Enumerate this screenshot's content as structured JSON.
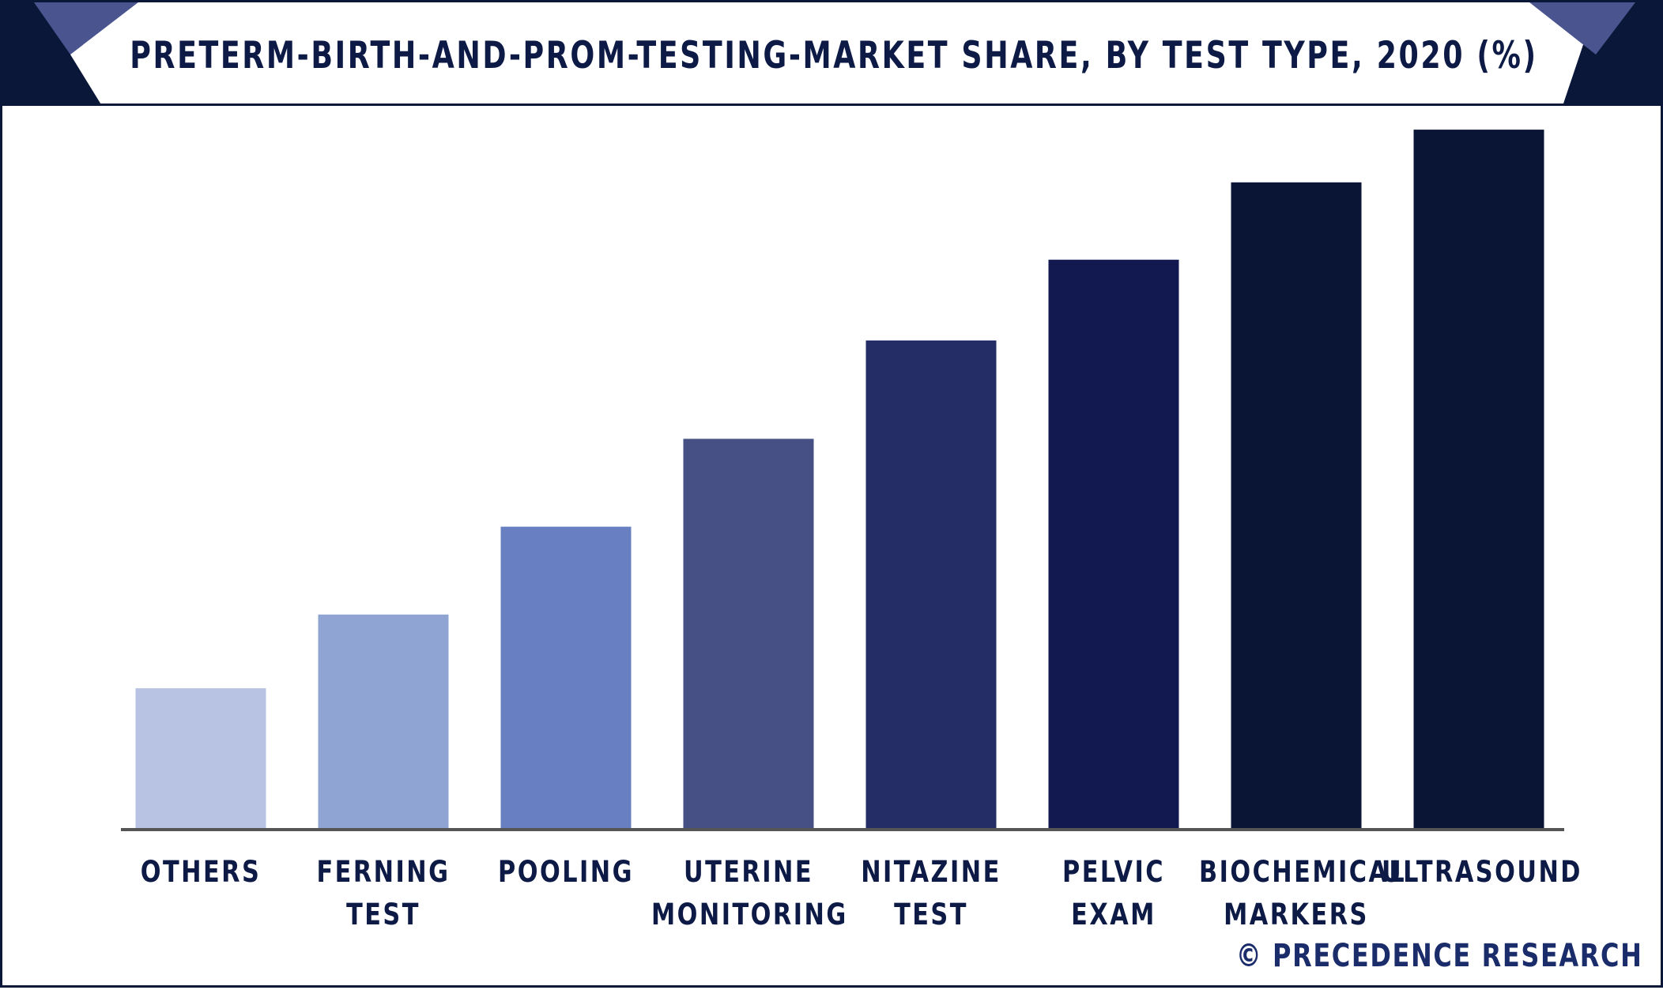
{
  "colors": {
    "frame": "#0b1739",
    "header_dark": "#0b1739",
    "header_accent": "#4a5590",
    "title_text": "#0c1a45",
    "axis": "#555555",
    "credit_text": "#1b2c6b"
  },
  "credit": "© PRECEDENCE RESEARCH",
  "chart_data": {
    "type": "bar",
    "title": "PRETERM-BIRTH-AND-PROM-TESTING-MARKET SHARE, BY TEST TYPE, 2020 (%)",
    "categories": [
      [
        "OTHERS"
      ],
      [
        "FERNING",
        "TEST"
      ],
      [
        "POOLING"
      ],
      [
        "UTERINE",
        "MONITORING"
      ],
      [
        "NITAZINE",
        "TEST"
      ],
      [
        "PELVIC",
        "EXAM"
      ],
      [
        "BIOCHEMICAL",
        "MARKERS"
      ],
      [
        "ULTRASOUND"
      ]
    ],
    "values": [
      4,
      6.1,
      8.6,
      11.1,
      13.9,
      16.2,
      18.4,
      19.9
    ],
    "bar_colors": [
      "#b8c3e3",
      "#8fa4d2",
      "#6880c2",
      "#465085",
      "#252d66",
      "#121950",
      "#0a1434",
      "#0a1434"
    ],
    "ylim": [
      0,
      20.6
    ],
    "xlabel": "",
    "ylabel": "",
    "grid": false,
    "legend": "none"
  }
}
